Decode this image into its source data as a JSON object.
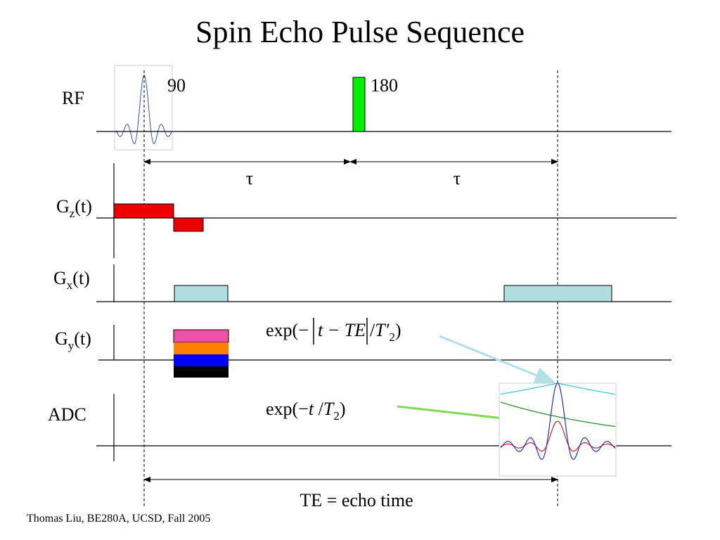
{
  "title": "Spin Echo Pulse Sequence",
  "rows": {
    "rf": {
      "label": "RF",
      "pulse_90": "90",
      "pulse_180": "180"
    },
    "gz": {
      "main": "G",
      "sub": "z",
      "tail": "(t)"
    },
    "gx": {
      "main": "G",
      "sub": "x",
      "tail": "(t)"
    },
    "gy": {
      "main": "G",
      "sub": "y",
      "tail": "(t)"
    },
    "adc": {
      "label": "ADC"
    }
  },
  "tau_left": "τ",
  "tau_right": "τ",
  "formula_1": {
    "prefix": "exp(−",
    "body": "t − TE",
    "slash": "/",
    "var": "T′",
    "sub": "2",
    "suffix": ")"
  },
  "formula_2": {
    "prefix": "exp(−",
    "body": "t",
    "slash": " /",
    "var": "T",
    "sub": "2",
    "suffix": ")"
  },
  "echo_label": "TE = echo time",
  "footer": "Thomas Liu, BE280A, UCSD, Fall 2005"
}
